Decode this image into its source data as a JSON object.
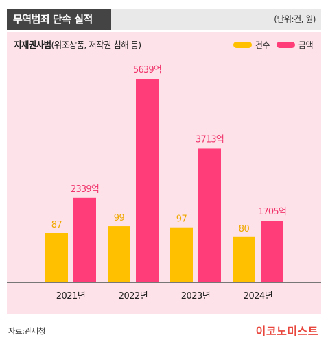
{
  "header": {
    "title": "무역범죄 단속 실적",
    "unit": "(단위:건, 원)"
  },
  "subtitle": {
    "bold": "지재권사범",
    "rest": "(위조상품, 저작권 침해 등)"
  },
  "colors": {
    "count": "#ffc000",
    "amount": "#ff3d78",
    "background": "#fde3e9",
    "header": "#444444"
  },
  "chart_data": {
    "type": "bar",
    "categories": [
      "2021년",
      "2022년",
      "2023년",
      "2024년"
    ],
    "series": [
      {
        "name": "건수",
        "values": [
          87,
          99,
          97,
          80
        ],
        "labels": [
          "87",
          "99",
          "97",
          "80"
        ]
      },
      {
        "name": "금액",
        "values": [
          2339,
          5639,
          3713,
          1705
        ],
        "labels": [
          "2339억",
          "5639억",
          "3713억",
          "1705억"
        ]
      }
    ],
    "legend_position": "top-right",
    "grid": false
  },
  "footer": {
    "source": "자료:관세청",
    "logo": "이코노미스트"
  }
}
